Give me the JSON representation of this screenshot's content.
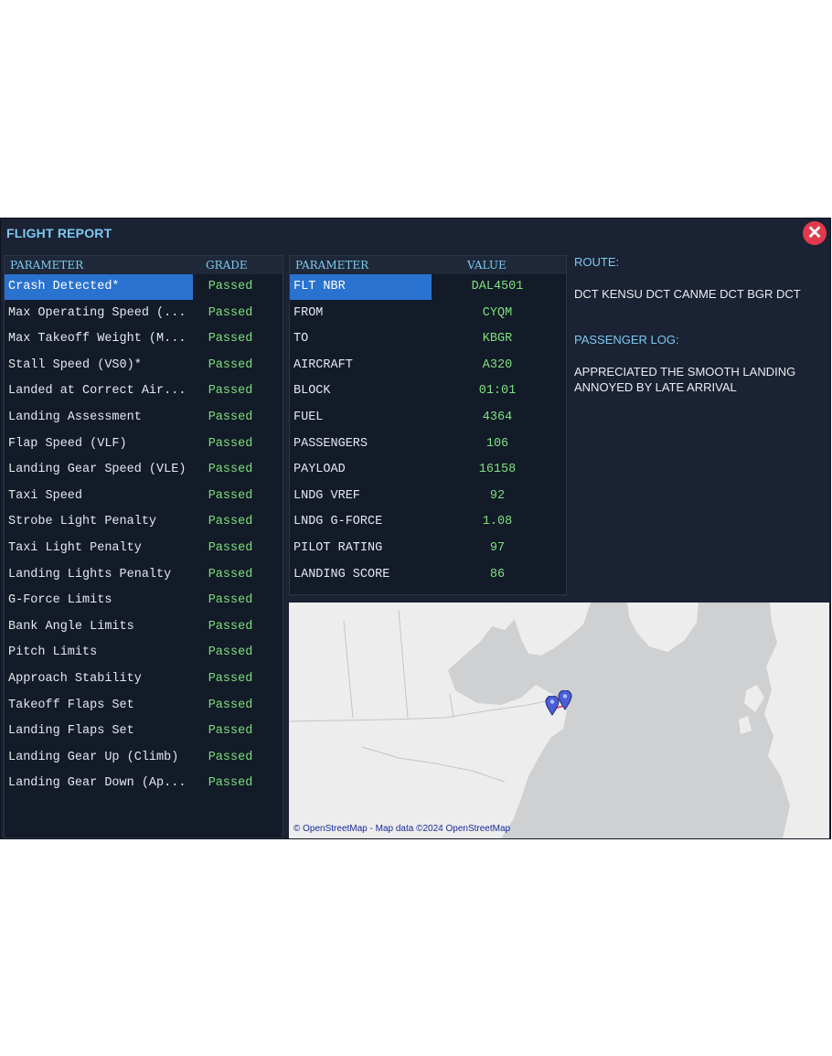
{
  "window": {
    "title": "FLIGHT REPORT",
    "close_icon": "✕"
  },
  "grades": {
    "header": {
      "parameter": "PARAMETER",
      "grade": "GRADE"
    },
    "rows": [
      {
        "name": "Crash Detected*",
        "grade": "Passed"
      },
      {
        "name": "Max Operating Speed (...",
        "grade": "Passed"
      },
      {
        "name": "Max Takeoff Weight (M...",
        "grade": "Passed"
      },
      {
        "name": "Stall Speed (VS0)*",
        "grade": "Passed"
      },
      {
        "name": "Landed at Correct Air...",
        "grade": "Passed"
      },
      {
        "name": "Landing Assessment",
        "grade": "Passed"
      },
      {
        "name": "Flap Speed (VLF)",
        "grade": "Passed"
      },
      {
        "name": "Landing Gear Speed (VLE)",
        "grade": "Passed"
      },
      {
        "name": "Taxi Speed",
        "grade": "Passed"
      },
      {
        "name": "Strobe Light Penalty",
        "grade": "Passed"
      },
      {
        "name": "Taxi Light Penalty",
        "grade": "Passed"
      },
      {
        "name": "Landing Lights Penalty",
        "grade": "Passed"
      },
      {
        "name": "G-Force Limits",
        "grade": "Passed"
      },
      {
        "name": "Bank Angle Limits",
        "grade": "Passed"
      },
      {
        "name": "Pitch Limits",
        "grade": "Passed"
      },
      {
        "name": "Approach Stability",
        "grade": "Passed"
      },
      {
        "name": "Takeoff Flaps Set",
        "grade": "Passed"
      },
      {
        "name": "Landing Flaps Set",
        "grade": "Passed"
      },
      {
        "name": "Landing Gear Up (Climb)",
        "grade": "Passed"
      },
      {
        "name": "Landing Gear Down (Ap...",
        "grade": "Passed"
      }
    ]
  },
  "flight": {
    "header": {
      "parameter": "PARAMETER",
      "value": "VALUE"
    },
    "rows": [
      {
        "name": "FLT NBR",
        "value": "DAL4501"
      },
      {
        "name": "FROM",
        "value": "CYQM"
      },
      {
        "name": "TO",
        "value": "KBGR"
      },
      {
        "name": "AIRCRAFT",
        "value": "A320"
      },
      {
        "name": "BLOCK",
        "value": "01:01"
      },
      {
        "name": "FUEL",
        "value": "4364"
      },
      {
        "name": "PASSENGERS",
        "value": "106"
      },
      {
        "name": "PAYLOAD",
        "value": "16158"
      },
      {
        "name": "LNDG VREF",
        "value": "92"
      },
      {
        "name": "LNDG G-FORCE",
        "value": "1.08"
      },
      {
        "name": "PILOT RATING",
        "value": "97"
      },
      {
        "name": "LANDING SCORE",
        "value": "86"
      }
    ]
  },
  "route": {
    "label": "ROUTE:",
    "text": "DCT KENSU DCT CANME DCT BGR DCT"
  },
  "passenger_log": {
    "label": "PASSENGER LOG:",
    "lines": [
      "APPRECIATED THE SMOOTH LANDING",
      "ANNOYED BY LATE ARRIVAL"
    ]
  },
  "map": {
    "attribution": "© OpenStreetMap - Map data ©2024 OpenStreetMap",
    "pins": [
      "map-pin-icon",
      "map-pin-icon"
    ]
  },
  "colors": {
    "window_bg": "#1a2233",
    "accent": "#7ec8f0",
    "passed": "#7de07d",
    "selection": "#2a72d0",
    "close": "#e03a4c"
  }
}
